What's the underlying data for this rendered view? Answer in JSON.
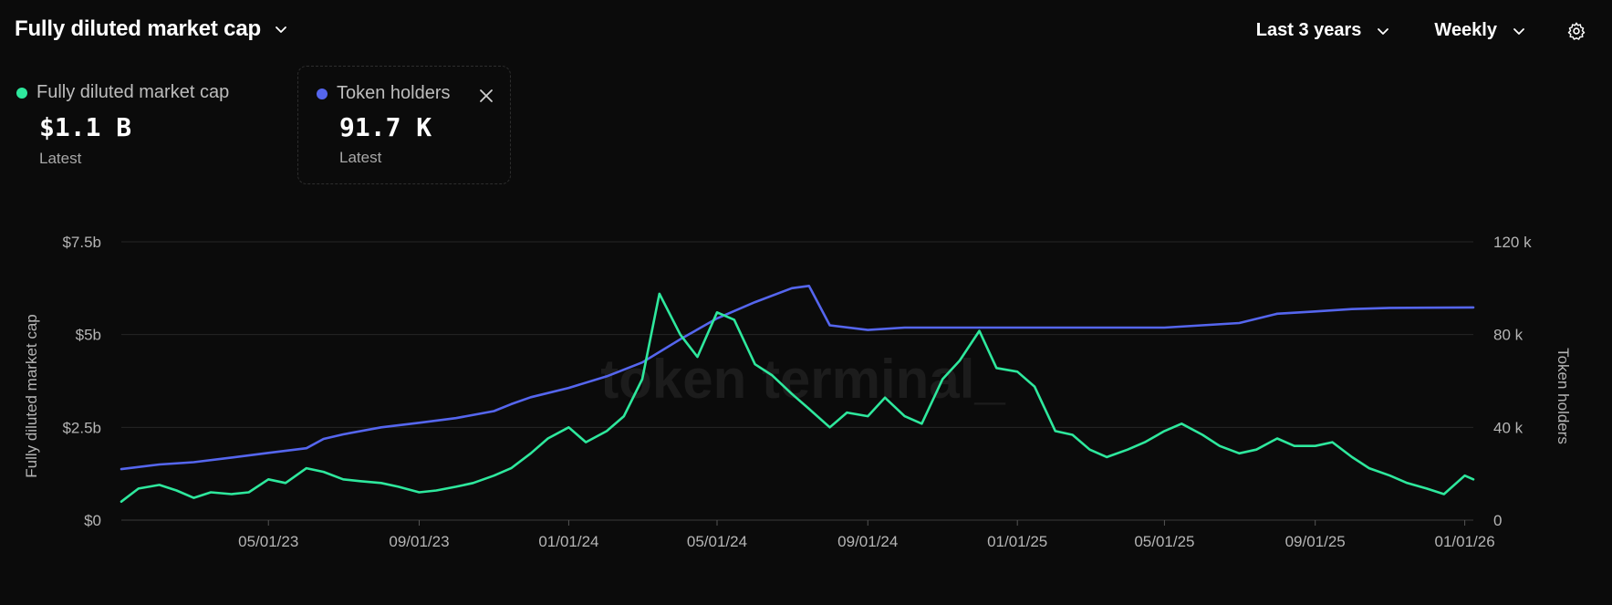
{
  "header": {
    "title": "Fully diluted market cap",
    "range_label": "Last 3 years",
    "interval_label": "Weekly"
  },
  "legend": [
    {
      "name": "Fully diluted market cap",
      "value": "$1.1 B",
      "sub": "Latest",
      "color": "#2ee89d"
    },
    {
      "name": "Token holders",
      "value": "91.7 K",
      "sub": "Latest",
      "color": "#5566ee"
    }
  ],
  "watermark": "token terminal_",
  "chart_data": {
    "type": "line",
    "x_ticks": [
      "05/01/23",
      "09/01/23",
      "01/01/24",
      "05/01/24",
      "09/01/24",
      "01/01/25",
      "05/01/25",
      "09/01/25",
      "01/01/26"
    ],
    "x_range": [
      "2023-01-01",
      "2026-01-08"
    ],
    "y_left": {
      "label": "Fully diluted market cap",
      "ticks": [
        "$0",
        "$2.5b",
        "$5b",
        "$7.5b"
      ],
      "range": [
        0,
        7.5
      ]
    },
    "y_right": {
      "label": "Token holders",
      "ticks": [
        "0",
        "40 k",
        "80 k",
        "120 k"
      ],
      "range": [
        0,
        120
      ]
    },
    "series": [
      {
        "name": "Fully diluted market cap",
        "axis": "left",
        "unit": "$b",
        "color": "#2ee89d",
        "points": [
          [
            "2023-01-01",
            0.5
          ],
          [
            "2023-01-15",
            0.85
          ],
          [
            "2023-02-01",
            0.95
          ],
          [
            "2023-02-15",
            0.8
          ],
          [
            "2023-03-01",
            0.6
          ],
          [
            "2023-03-15",
            0.75
          ],
          [
            "2023-04-01",
            0.7
          ],
          [
            "2023-04-15",
            0.75
          ],
          [
            "2023-05-01",
            1.1
          ],
          [
            "2023-05-15",
            1.0
          ],
          [
            "2023-06-01",
            1.4
          ],
          [
            "2023-06-15",
            1.3
          ],
          [
            "2023-07-01",
            1.1
          ],
          [
            "2023-07-15",
            1.05
          ],
          [
            "2023-08-01",
            1.0
          ],
          [
            "2023-08-15",
            0.9
          ],
          [
            "2023-09-01",
            0.75
          ],
          [
            "2023-09-15",
            0.8
          ],
          [
            "2023-10-01",
            0.9
          ],
          [
            "2023-10-15",
            1.0
          ],
          [
            "2023-11-01",
            1.2
          ],
          [
            "2023-11-15",
            1.4
          ],
          [
            "2023-12-01",
            1.8
          ],
          [
            "2023-12-15",
            2.2
          ],
          [
            "2024-01-01",
            2.5
          ],
          [
            "2024-01-15",
            2.1
          ],
          [
            "2024-02-01",
            2.4
          ],
          [
            "2024-02-15",
            2.8
          ],
          [
            "2024-03-01",
            3.8
          ],
          [
            "2024-03-15",
            6.1
          ],
          [
            "2024-04-01",
            5.0
          ],
          [
            "2024-04-15",
            4.4
          ],
          [
            "2024-05-01",
            5.6
          ],
          [
            "2024-05-15",
            5.4
          ],
          [
            "2024-06-01",
            4.2
          ],
          [
            "2024-06-15",
            3.9
          ],
          [
            "2024-07-01",
            3.4
          ],
          [
            "2024-07-15",
            3.0
          ],
          [
            "2024-08-01",
            2.5
          ],
          [
            "2024-08-15",
            2.9
          ],
          [
            "2024-09-01",
            2.8
          ],
          [
            "2024-09-15",
            3.3
          ],
          [
            "2024-10-01",
            2.8
          ],
          [
            "2024-10-15",
            2.6
          ],
          [
            "2024-11-01",
            3.8
          ],
          [
            "2024-11-15",
            4.3
          ],
          [
            "2024-12-01",
            5.1
          ],
          [
            "2024-12-15",
            4.1
          ],
          [
            "2025-01-01",
            4.0
          ],
          [
            "2025-01-15",
            3.6
          ],
          [
            "2025-02-01",
            2.4
          ],
          [
            "2025-02-15",
            2.3
          ],
          [
            "2025-03-01",
            1.9
          ],
          [
            "2025-03-15",
            1.7
          ],
          [
            "2025-04-01",
            1.9
          ],
          [
            "2025-04-15",
            2.1
          ],
          [
            "2025-05-01",
            2.4
          ],
          [
            "2025-05-15",
            2.6
          ],
          [
            "2025-06-01",
            2.3
          ],
          [
            "2025-06-15",
            2.0
          ],
          [
            "2025-07-01",
            1.8
          ],
          [
            "2025-07-15",
            1.9
          ],
          [
            "2025-08-01",
            2.2
          ],
          [
            "2025-08-15",
            2.0
          ],
          [
            "2025-09-01",
            2.0
          ],
          [
            "2025-09-15",
            2.1
          ],
          [
            "2025-10-01",
            1.7
          ],
          [
            "2025-10-15",
            1.4
          ],
          [
            "2025-11-01",
            1.2
          ],
          [
            "2025-11-15",
            1.0
          ],
          [
            "2025-12-01",
            0.85
          ],
          [
            "2025-12-15",
            0.7
          ],
          [
            "2026-01-01",
            1.2
          ],
          [
            "2026-01-08",
            1.1
          ]
        ]
      },
      {
        "name": "Token holders",
        "axis": "right",
        "unit": "k",
        "color": "#5566ee",
        "points": [
          [
            "2023-01-01",
            22
          ],
          [
            "2023-02-01",
            24
          ],
          [
            "2023-03-01",
            25
          ],
          [
            "2023-04-01",
            27
          ],
          [
            "2023-05-01",
            29
          ],
          [
            "2023-06-01",
            31
          ],
          [
            "2023-06-15",
            35
          ],
          [
            "2023-07-01",
            37
          ],
          [
            "2023-08-01",
            40
          ],
          [
            "2023-09-01",
            42
          ],
          [
            "2023-10-01",
            44
          ],
          [
            "2023-11-01",
            47
          ],
          [
            "2023-11-15",
            50
          ],
          [
            "2023-12-01",
            53
          ],
          [
            "2024-01-01",
            57
          ],
          [
            "2024-02-01",
            62
          ],
          [
            "2024-03-01",
            68
          ],
          [
            "2024-04-01",
            78
          ],
          [
            "2024-05-01",
            87
          ],
          [
            "2024-06-01",
            94
          ],
          [
            "2024-07-01",
            100
          ],
          [
            "2024-07-15",
            101
          ],
          [
            "2024-08-01",
            84
          ],
          [
            "2024-09-01",
            82
          ],
          [
            "2024-10-01",
            83
          ],
          [
            "2024-11-01",
            83
          ],
          [
            "2024-12-01",
            83
          ],
          [
            "2025-01-01",
            83
          ],
          [
            "2025-03-01",
            83
          ],
          [
            "2025-05-01",
            83
          ],
          [
            "2025-07-01",
            85
          ],
          [
            "2025-08-01",
            89
          ],
          [
            "2025-09-01",
            90
          ],
          [
            "2025-10-01",
            91
          ],
          [
            "2025-11-01",
            91.5
          ],
          [
            "2025-12-01",
            91.6
          ],
          [
            "2026-01-08",
            91.7
          ]
        ]
      }
    ]
  }
}
